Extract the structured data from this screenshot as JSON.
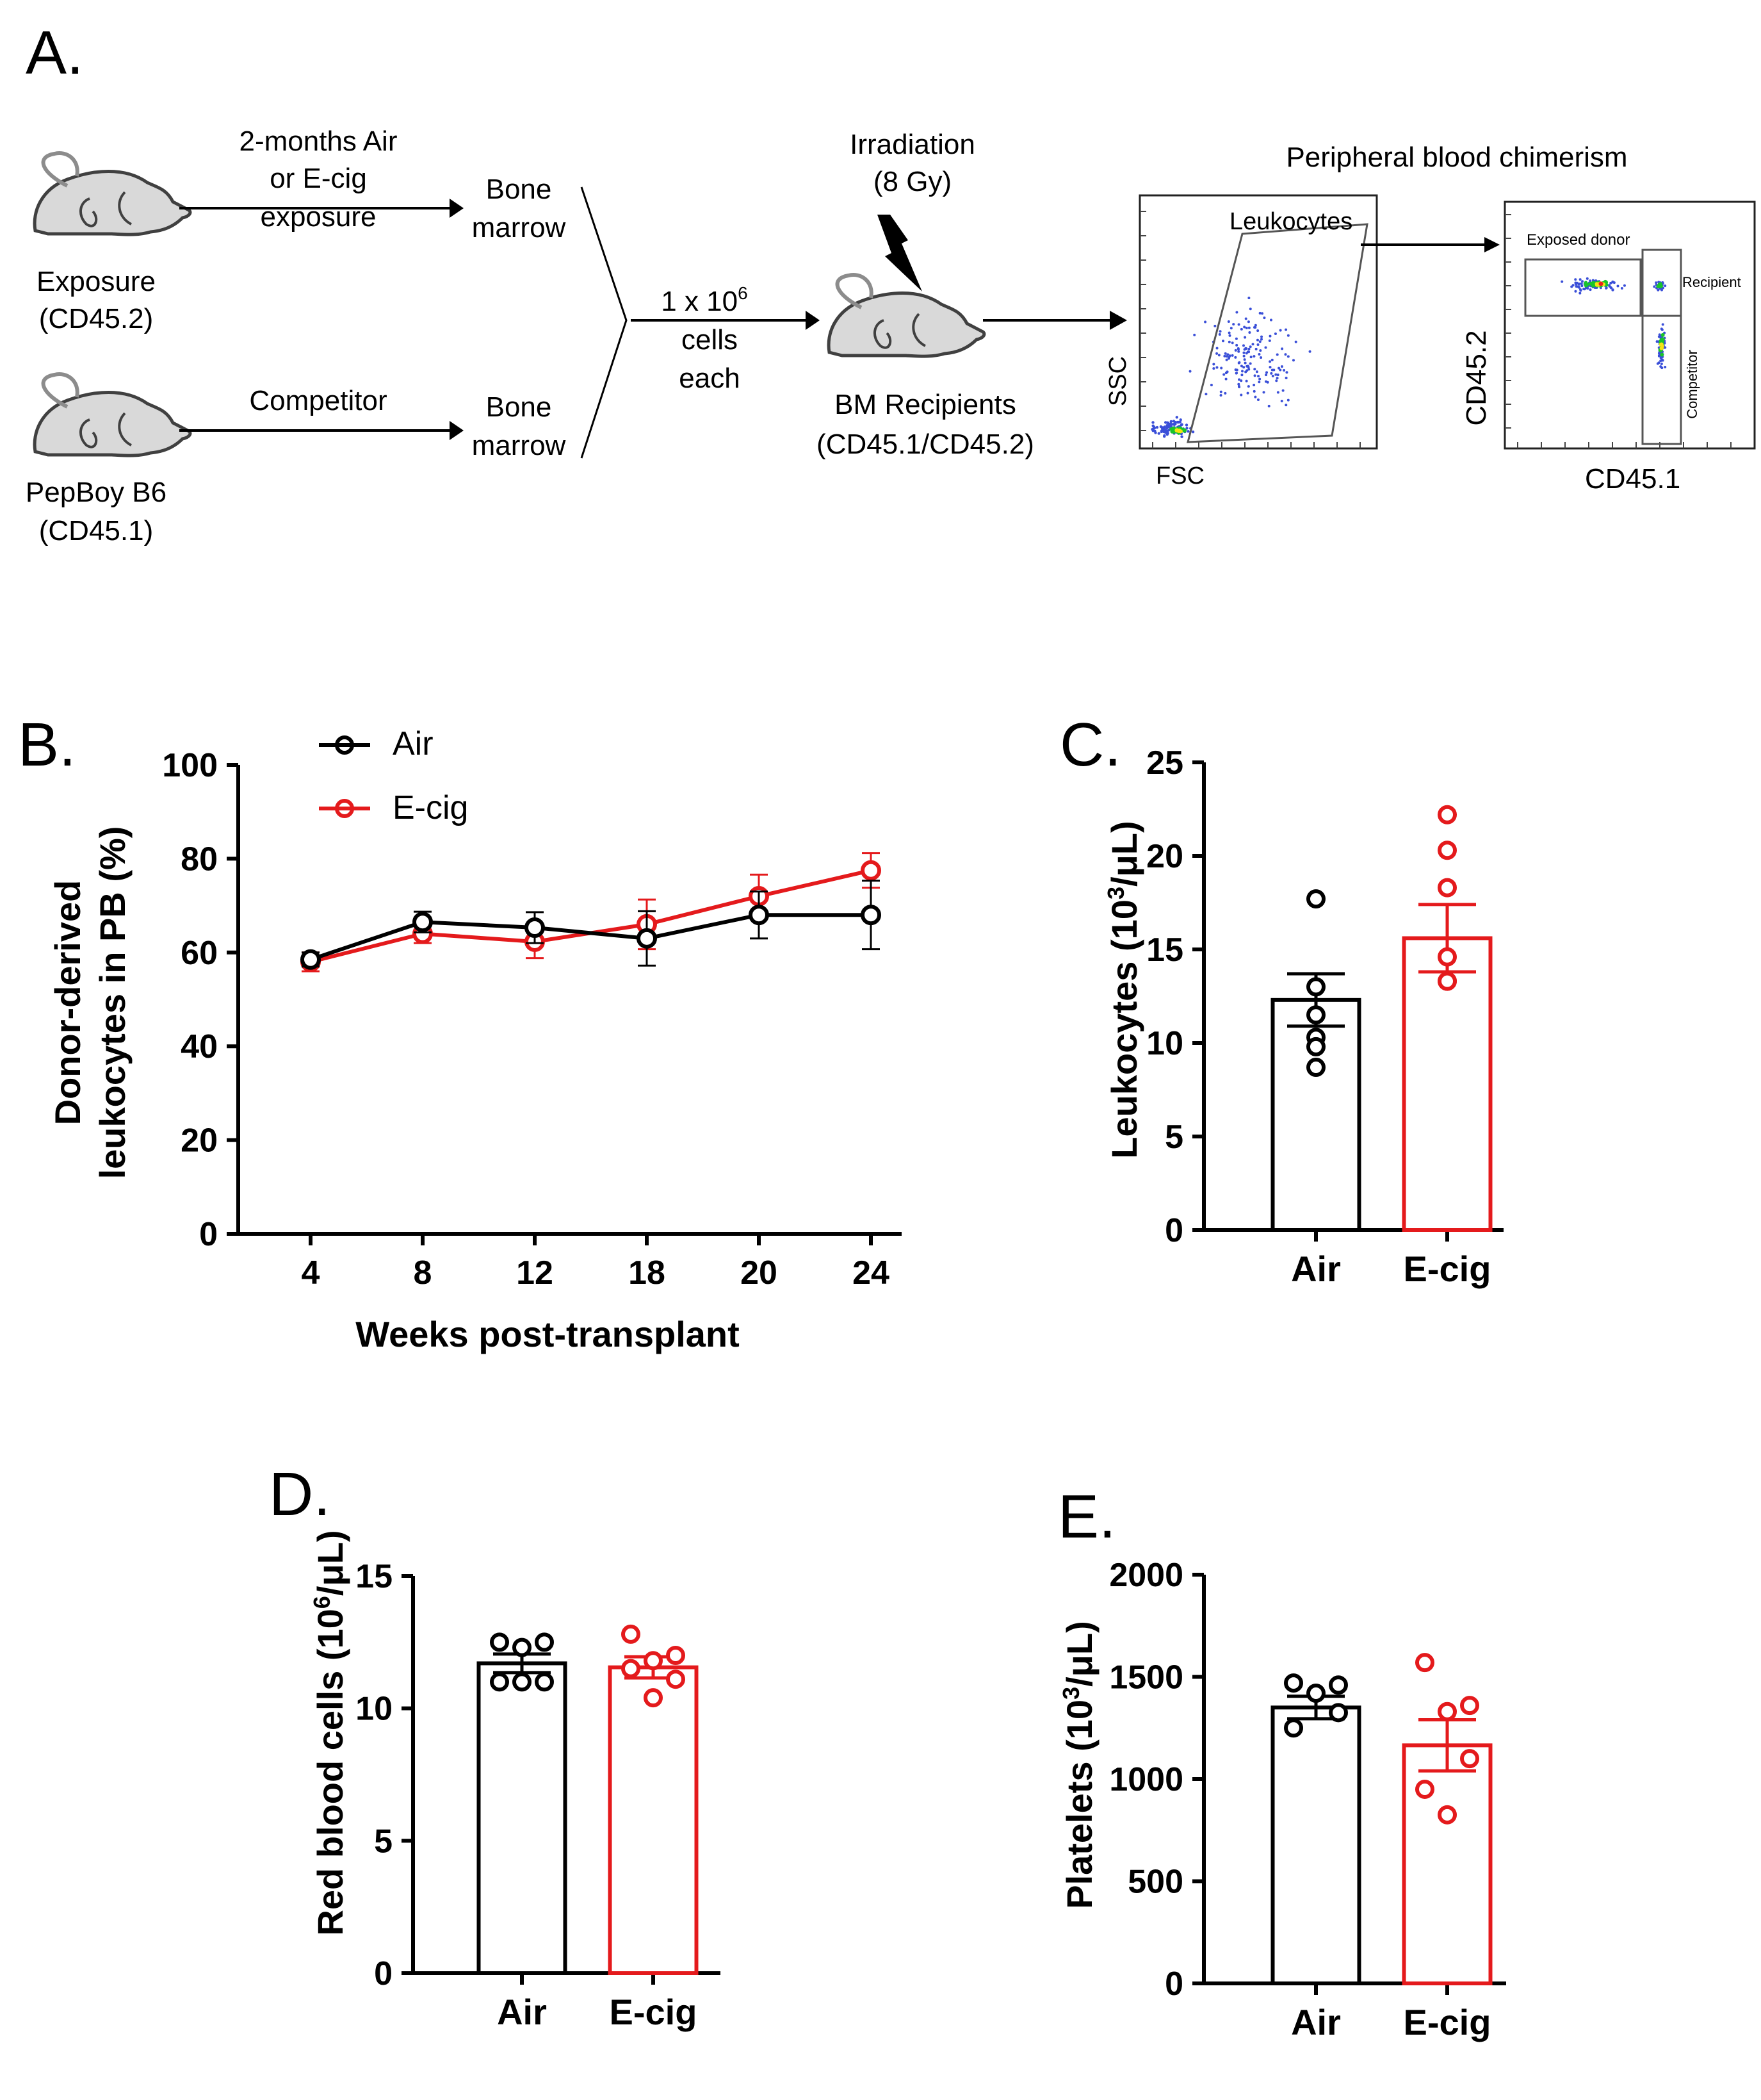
{
  "panel_a": {
    "label": "A.",
    "exposure_top": "2-months Air",
    "exposure_mid": "or E-cig",
    "exposure_bottom": "exposure",
    "bone_marrow_top_1": "Bone",
    "bone_marrow_top_2": "marrow",
    "exposure_mouse_1": "Exposure",
    "exposure_mouse_2": "(CD45.2)",
    "competitor_label": "Competitor",
    "bone_marrow_bot_1": "Bone",
    "bone_marrow_bot_2": "marrow",
    "competitor_mouse_1": "PepBoy B6",
    "competitor_mouse_2": "(CD45.1)",
    "cells_1": "1 x 10",
    "cells_exp": "6",
    "cells_2": "cells",
    "cells_3": "each",
    "irradiation_1": "Irradiation",
    "irradiation_2": "(8 Gy)",
    "recipients_1": "BM Recipients",
    "recipients_2": "(CD45.1/CD45.2)",
    "chimerism_title": "Peripheral blood chimerism",
    "gate_leukocytes": "Leukocytes",
    "ssc": "SSC",
    "fsc": "FSC",
    "gate_exposed": "Exposed donor",
    "gate_recipient": "Recipient",
    "gate_competitor": "Competitor",
    "cd452": "CD45.2",
    "cd451": "CD45.1",
    "colors": {
      "dot_blue": "#3a4fd8",
      "dot_green": "#19c42a",
      "dot_yellow": "#f4e313",
      "dot_red": "#e8231c"
    }
  },
  "chart_data": [
    {
      "panel": "B.",
      "type": "line",
      "categories": [
        "4",
        "8",
        "12",
        "18",
        "20",
        "24"
      ],
      "series": [
        {
          "name": "Air",
          "color": "#000000",
          "values": [
            58.5,
            66.5,
            65.3,
            63.0,
            68.0,
            68.0
          ],
          "errors": [
            1.5,
            2.2,
            3.3,
            5.8,
            5.0,
            7.3
          ]
        },
        {
          "name": "E-cig",
          "color": "#e41a1c",
          "values": [
            58.0,
            64.0,
            62.3,
            66.0,
            72.0,
            77.5
          ],
          "errors": [
            2.0,
            2.0,
            3.5,
            5.3,
            4.6,
            3.7
          ]
        }
      ],
      "ylim": [
        0,
        100
      ],
      "yticks": [
        "0",
        "20",
        "40",
        "60",
        "80",
        "100"
      ],
      "ylabel_1": "Donor-derived",
      "ylabel_2": "leukocytes in PB (%)",
      "xlabel": "Weeks post-transplant"
    },
    {
      "panel": "C.",
      "type": "bar",
      "categories": [
        "Air",
        "E-cig"
      ],
      "values": [
        12.3,
        15.6
      ],
      "sem": [
        1.4,
        1.8
      ],
      "points": [
        [
          17.7,
          13.0,
          11.5,
          10.3,
          9.8,
          8.7
        ],
        [
          22.2,
          20.3,
          18.3,
          14.6,
          13.3,
          13.3
        ]
      ],
      "colors": [
        "#000000",
        "#e41a1c"
      ],
      "ylim": [
        0,
        25
      ],
      "yticks": [
        "0",
        "5",
        "10",
        "15",
        "20",
        "25"
      ],
      "ylabel_pre": "Leukocytes (10",
      "ylabel_sup": "3",
      "ylabel_post": "/μL)"
    },
    {
      "panel": "D.",
      "type": "bar",
      "categories": [
        "Air",
        "E-cig"
      ],
      "values": [
        11.7,
        11.55
      ],
      "sem": [
        0.35,
        0.4
      ],
      "points": [
        [
          12.5,
          12.5,
          12.3,
          11.0,
          11.0,
          11.0
        ],
        [
          12.8,
          12.0,
          11.8,
          11.5,
          11.1,
          10.4
        ]
      ],
      "colors": [
        "#000000",
        "#e41a1c"
      ],
      "ylim": [
        0,
        15
      ],
      "yticks": [
        "0",
        "5",
        "10",
        "15"
      ],
      "ylabel_pre": "Red blood cells (10",
      "ylabel_sup": "6",
      "ylabel_post": "/μL)"
    },
    {
      "panel": "E.",
      "type": "bar",
      "categories": [
        "Air",
        "E-cig"
      ],
      "values": [
        1350,
        1165
      ],
      "sem": [
        55,
        125
      ],
      "points": [
        [
          1470,
          1460,
          1420,
          1325,
          1250
        ],
        [
          1570,
          1360,
          1330,
          1100,
          950,
          825
        ]
      ],
      "colors": [
        "#000000",
        "#e41a1c"
      ],
      "ylim": [
        0,
        2000
      ],
      "yticks": [
        "0",
        "500",
        "1000",
        "1500",
        "2000"
      ],
      "ylabel_pre": "Platelets (10",
      "ylabel_sup": "3",
      "ylabel_post": "/μL)"
    }
  ]
}
